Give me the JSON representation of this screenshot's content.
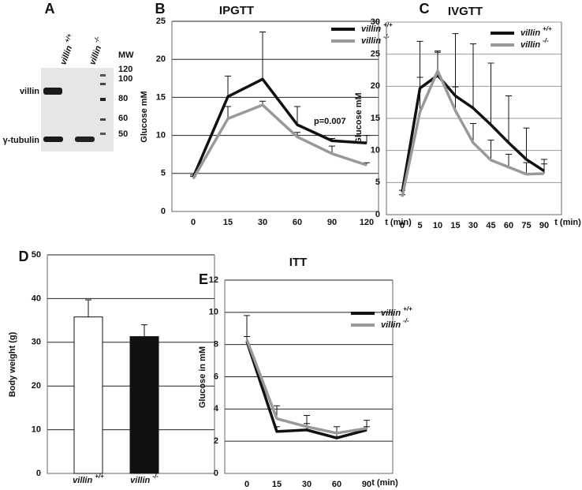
{
  "chart_data": [
    {
      "type": "blot",
      "label": "A",
      "lanes": [
        "villin +/+",
        "villin -/-"
      ],
      "mw_label": "MW",
      "mw_markers": [
        120,
        100,
        80,
        60,
        50
      ],
      "bands": [
        "villin",
        "γ-tubulin"
      ]
    },
    {
      "type": "line",
      "label": "B",
      "title": "IPGTT",
      "xlabel": "t (min)",
      "ylabel": "Glucose mM",
      "annotation": "p=0.007",
      "categories": [
        "0",
        "15",
        "30",
        "60",
        "90",
        "120"
      ],
      "ylim": [
        0,
        25
      ],
      "yticks": [
        0,
        5,
        10,
        15,
        20,
        25
      ],
      "grid": true,
      "legend": "upper right",
      "series": [
        {
          "name": "villin +/+",
          "color": "#111111",
          "values": [
            4.5,
            15.1,
            17.4,
            11.4,
            9.3,
            9.0
          ],
          "errors": [
            0.3,
            2.7,
            6.2,
            2.4,
            0.3,
            1.0
          ]
        },
        {
          "name": "villin -/-",
          "color": "#999999",
          "values": [
            4.3,
            12.2,
            14.0,
            9.8,
            7.6,
            6.1
          ],
          "errors": [
            0.3,
            1.6,
            0.5,
            0.6,
            1.0,
            0.3
          ]
        }
      ]
    },
    {
      "type": "line",
      "label": "C",
      "title": "IVGTT",
      "xlabel": "t (min)",
      "ylabel": "Glucose mM",
      "categories": [
        "0",
        "5",
        "10",
        "15",
        "30",
        "45",
        "60",
        "75",
        "90"
      ],
      "ylim": [
        0,
        30
      ],
      "yticks": [
        0,
        5,
        10,
        15,
        20,
        25,
        30
      ],
      "grid": true,
      "legend": "upper right",
      "series": [
        {
          "name": "villin +/+",
          "color": "#111111",
          "values": [
            3.5,
            19.7,
            21.7,
            18.5,
            16.6,
            14.0,
            11.2,
            8.6,
            6.8
          ],
          "errors": [
            0.3,
            7.3,
            3.8,
            9.7,
            10.0,
            9.6,
            7.3,
            4.9,
            1.8
          ]
        },
        {
          "name": "villin -/-",
          "color": "#999999",
          "values": [
            2.8,
            16.0,
            22.4,
            16.2,
            11.2,
            8.5,
            7.4,
            6.3,
            6.4
          ],
          "errors": [
            0.3,
            5.4,
            2.9,
            3.7,
            3.0,
            3.1,
            2.0,
            1.8,
            1.5
          ]
        }
      ]
    },
    {
      "type": "bar",
      "label": "D",
      "ylabel": "Body weight (g)",
      "categories": [
        "villin +/+",
        "villin -/-"
      ],
      "values": [
        35.8,
        31.3
      ],
      "errors": [
        3.9,
        2.7
      ],
      "colors": [
        "#ffffff",
        "#111111"
      ],
      "ylim": [
        0,
        50
      ],
      "yticks": [
        0,
        10,
        20,
        30,
        40,
        50
      ],
      "grid": true
    },
    {
      "type": "line",
      "label": "E",
      "title": "ITT",
      "xlabel": "t (min)",
      "ylabel": "Glucose in mM",
      "categories": [
        "0",
        "15",
        "30",
        "60",
        "90"
      ],
      "ylim": [
        0,
        12
      ],
      "yticks": [
        0,
        2,
        4,
        6,
        8,
        10,
        12
      ],
      "grid": true,
      "legend": "upper right",
      "series": [
        {
          "name": "villin +/+",
          "color": "#111111",
          "values": [
            8.2,
            2.6,
            2.7,
            2.2,
            2.7
          ],
          "errors": [
            1.6,
            0.3,
            0.4,
            0.3,
            0.2
          ]
        },
        {
          "name": "villin -/-",
          "color": "#999999",
          "values": [
            8.3,
            3.4,
            2.9,
            2.5,
            2.8
          ],
          "errors": [
            0.2,
            0.8,
            0.7,
            0.4,
            0.5
          ]
        }
      ]
    }
  ]
}
